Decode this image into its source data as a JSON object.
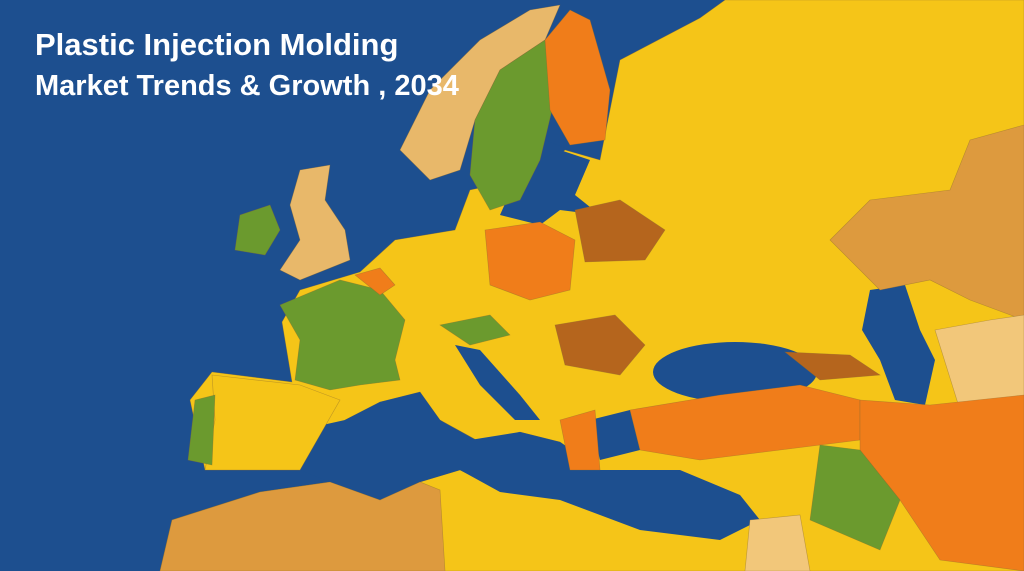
{
  "header": {
    "title": "Plastic Injection Molding",
    "subtitle": "Market Trends & Growth , 2034"
  }
}
